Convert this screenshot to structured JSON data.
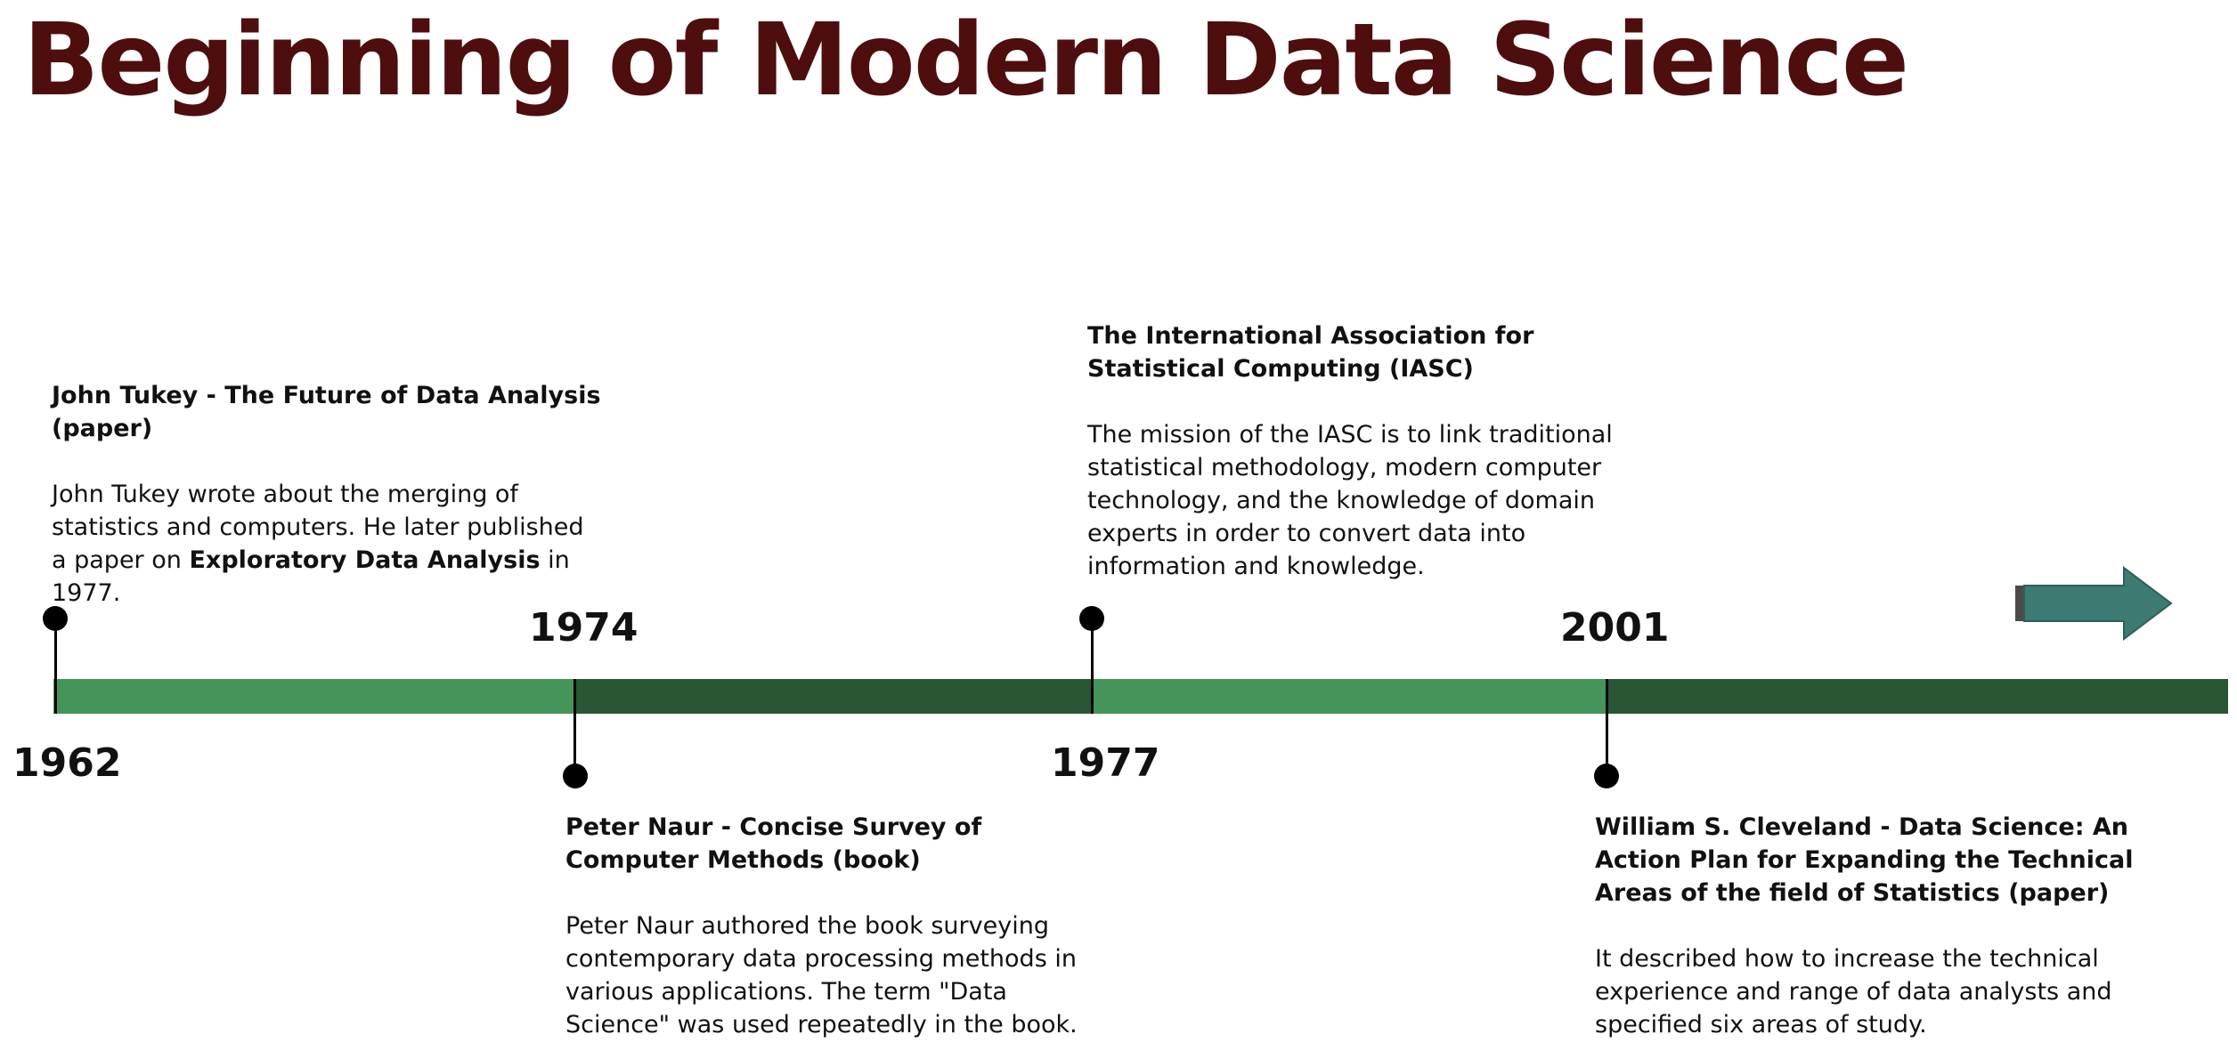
{
  "title": "Beginning of Modern Data Science",
  "colors": {
    "title": "#4e0e0e",
    "segment_light": "#45955b",
    "segment_dark": "#2a5636",
    "arrow": "#3d7a72",
    "marker": "#000000"
  },
  "arrow_icon": "right-arrow-icon",
  "events": [
    {
      "year": "1962",
      "heading": "John Tukey - The Future of Data Analysis (paper)",
      "description_before": "John Tukey wrote about the merging of statistics and computers. He later published a paper on ",
      "description_bold": "Exploratory Data Analysis",
      "description_after": " in 1977."
    },
    {
      "year": "1974",
      "heading": "Peter Naur - Concise Survey of Computer Methods (book)",
      "description": "Peter Naur authored the book surveying contemporary data processing methods in various applications. The term \"Data Science\" was used repeatedly in the book."
    },
    {
      "year": "1977",
      "heading": "The International Association for Statistical Computing (IASC)",
      "description": "The mission of the IASC is to link traditional statistical methodology, modern computer technology, and the knowledge of domain experts in order to convert data into information and knowledge."
    },
    {
      "year": "2001",
      "heading": "William S. Cleveland  - Data Science: An Action Plan for Expanding the Technical Areas of the field of Statistics (paper)",
      "description": "It described how to increase the technical experience and range of data analysts and specified six areas of study."
    }
  ]
}
